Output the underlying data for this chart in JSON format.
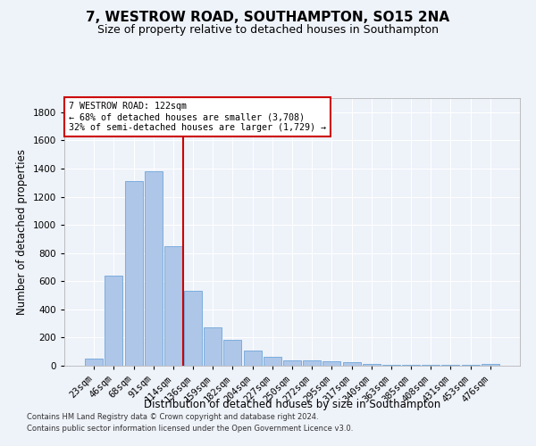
{
  "title1": "7, WESTROW ROAD, SOUTHAMPTON, SO15 2NA",
  "title2": "Size of property relative to detached houses in Southampton",
  "xlabel": "Distribution of detached houses by size in Southampton",
  "ylabel": "Number of detached properties",
  "categories": [
    "23sqm",
    "46sqm",
    "68sqm",
    "91sqm",
    "114sqm",
    "136sqm",
    "159sqm",
    "182sqm",
    "204sqm",
    "227sqm",
    "250sqm",
    "272sqm",
    "295sqm",
    "317sqm",
    "340sqm",
    "363sqm",
    "385sqm",
    "408sqm",
    "431sqm",
    "453sqm",
    "476sqm"
  ],
  "values": [
    50,
    640,
    1310,
    1380,
    850,
    530,
    275,
    185,
    105,
    65,
    40,
    40,
    30,
    25,
    15,
    5,
    5,
    5,
    5,
    5,
    15
  ],
  "bar_color": "#aec6e8",
  "bar_edge_color": "#5b9bd5",
  "vline_color": "#cc0000",
  "annotation_text": "7 WESTROW ROAD: 122sqm\n← 68% of detached houses are smaller (3,708)\n32% of semi-detached houses are larger (1,729) →",
  "annotation_box_color": "#ffffff",
  "annotation_box_edge_color": "#cc0000",
  "ylim": [
    0,
    1900
  ],
  "yticks": [
    0,
    200,
    400,
    600,
    800,
    1000,
    1200,
    1400,
    1600,
    1800
  ],
  "footnote1": "Contains HM Land Registry data © Crown copyright and database right 2024.",
  "footnote2": "Contains public sector information licensed under the Open Government Licence v3.0.",
  "background_color": "#eef2f9",
  "grid_color": "#ffffff",
  "title_fontsize": 11,
  "subtitle_fontsize": 9,
  "label_fontsize": 8.5,
  "tick_fontsize": 7.5,
  "footnote_fontsize": 6.0
}
